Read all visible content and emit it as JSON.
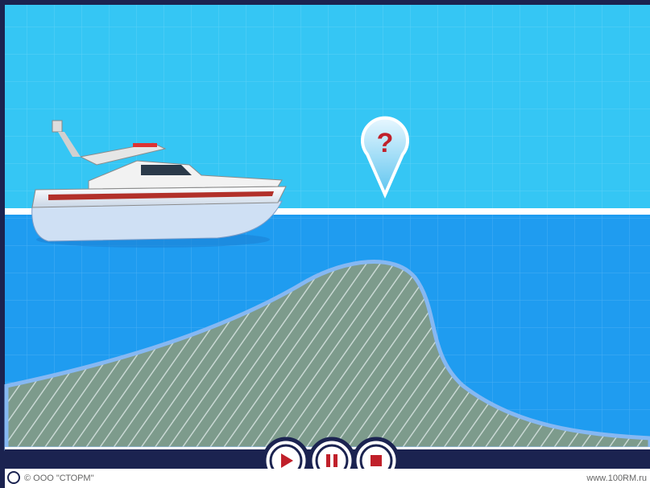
{
  "marker": {
    "label": "?"
  },
  "footer": {
    "copyright": "© ООО \"СТОРМ\"",
    "website": "www.100RM.ru"
  }
}
